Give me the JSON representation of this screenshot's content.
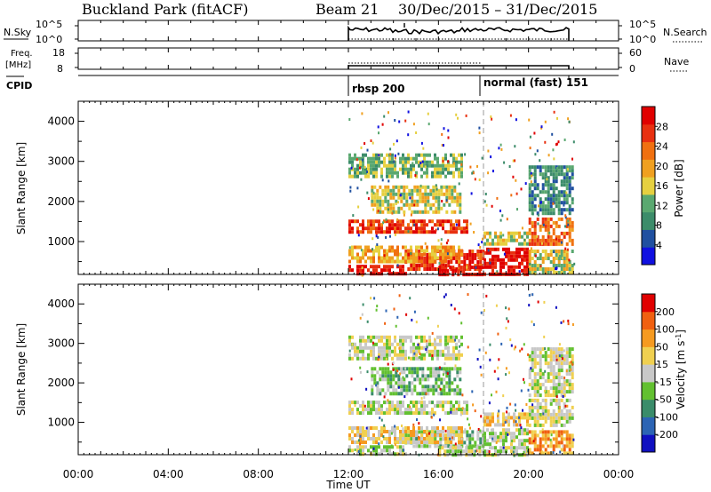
{
  "header": {
    "station": "Buckland Park (fitACF)",
    "beam": "Beam 21",
    "date_range": "30/Dec/2015 – 31/Dec/2015"
  },
  "strip_nsky": {
    "left_label": "N.Sky",
    "left_ticks": [
      "10^5",
      "10^0"
    ],
    "right_label": "N.Search",
    "right_ticks": [
      "10^5",
      "10^0"
    ]
  },
  "strip_freq": {
    "left_label_1": "Freq.",
    "left_label_2": "[MHz]",
    "left_ticks": [
      "18",
      "8"
    ],
    "right_label": "Nave",
    "right_ticks": [
      "60",
      "0"
    ]
  },
  "cpid": {
    "label": "CPID",
    "segments": [
      "rbsp 200",
      "normal (fast) 151"
    ]
  },
  "colors": {
    "scale_power": [
      "#1010e0",
      "#2050a0",
      "#3c8c6a",
      "#5aa870",
      "#e6d040",
      "#f0a020",
      "#f07010",
      "#e83010",
      "#e00000"
    ],
    "scale_velocity": [
      "#1010c0",
      "#2c64b4",
      "#3a8c6a",
      "#62c030",
      "#c8c8c8",
      "#f0d050",
      "#f59a20",
      "#f06010",
      "#e00000"
    ]
  },
  "chart_data": [
    {
      "type": "heatmap",
      "panel": "power",
      "ylabel": "Slant Range [km]",
      "yticks": [
        "1000",
        "2000",
        "3000",
        "4000"
      ],
      "ylim": [
        180,
        4500
      ],
      "xlim": [
        "00:00",
        "24:00"
      ],
      "data_time_range": [
        "12:00",
        "22:00"
      ],
      "colorbar": {
        "label": "Power [dB]",
        "ticks": [
          "4",
          "8",
          "12",
          "16",
          "20",
          "24",
          "28"
        ]
      },
      "regions": [
        {
          "t": [
            12.0,
            17.3
          ],
          "r": [
            1200,
            1550
          ],
          "level": 7
        },
        {
          "t": [
            12.0,
            14.5
          ],
          "r": [
            180,
            420
          ],
          "level": 8
        },
        {
          "t": [
            14.5,
            18.0
          ],
          "r": [
            350,
            800
          ],
          "level": 7
        },
        {
          "t": [
            16.0,
            18.0
          ],
          "r": [
            180,
            400
          ],
          "level": 8
        },
        {
          "t": [
            18.0,
            20.0
          ],
          "r": [
            180,
            850
          ],
          "level": 8
        },
        {
          "t": [
            12.0,
            17.0
          ],
          "r": [
            500,
            900
          ],
          "level": 5
        },
        {
          "t": [
            13.0,
            17.0
          ],
          "r": [
            1700,
            2400
          ],
          "level": 4
        },
        {
          "t": [
            12.0,
            17.0
          ],
          "r": [
            2600,
            3200
          ],
          "level": 3
        },
        {
          "t": [
            20.0,
            22.0
          ],
          "r": [
            900,
            1600
          ],
          "level": 6
        },
        {
          "t": [
            20.0,
            22.0
          ],
          "r": [
            1700,
            2900
          ],
          "level": 2
        },
        {
          "t": [
            20.0,
            22.0
          ],
          "r": [
            180,
            800
          ],
          "level": 4
        },
        {
          "t": [
            18.0,
            20.0
          ],
          "r": [
            950,
            1250
          ],
          "level": 4
        }
      ]
    },
    {
      "type": "heatmap",
      "panel": "velocity",
      "ylabel": "Slant Range [km]",
      "yticks": [
        "1000",
        "2000",
        "3000",
        "4000"
      ],
      "ylim": [
        180,
        4500
      ],
      "xlim": [
        "00:00",
        "24:00"
      ],
      "xticks": [
        "00:00",
        "04:00",
        "08:00",
        "12:00",
        "16:00",
        "20:00",
        "00:00"
      ],
      "xlabel": "Time UT",
      "data_time_range": [
        "12:00",
        "22:00"
      ],
      "colorbar": {
        "label": "Velocity [m s^-1]",
        "ticks": [
          "200",
          "100",
          "50",
          "15",
          "-15",
          "-50",
          "-100",
          "-200"
        ]
      },
      "regions": [
        {
          "t": [
            12.0,
            17.3
          ],
          "r": [
            1200,
            1550
          ],
          "level": 4
        },
        {
          "t": [
            12.0,
            14.5
          ],
          "r": [
            180,
            420
          ],
          "level": 4
        },
        {
          "t": [
            14.5,
            18.0
          ],
          "r": [
            350,
            800
          ],
          "level": 3
        },
        {
          "t": [
            16.0,
            18.0
          ],
          "r": [
            180,
            400
          ],
          "level": 4
        },
        {
          "t": [
            18.0,
            20.0
          ],
          "r": [
            180,
            850
          ],
          "level": 4
        },
        {
          "t": [
            12.0,
            17.0
          ],
          "r": [
            500,
            900
          ],
          "level": 5
        },
        {
          "t": [
            13.0,
            17.0
          ],
          "r": [
            1700,
            2400
          ],
          "level": 3
        },
        {
          "t": [
            12.0,
            17.0
          ],
          "r": [
            2600,
            3200
          ],
          "level": 4
        },
        {
          "t": [
            20.0,
            22.0
          ],
          "r": [
            900,
            1600
          ],
          "level": 4
        },
        {
          "t": [
            20.0,
            22.0
          ],
          "r": [
            1700,
            2900
          ],
          "level": 4
        },
        {
          "t": [
            20.0,
            22.0
          ],
          "r": [
            180,
            800
          ],
          "level": 6
        },
        {
          "t": [
            18.0,
            20.0
          ],
          "r": [
            950,
            1250
          ],
          "level": 5
        }
      ]
    }
  ]
}
